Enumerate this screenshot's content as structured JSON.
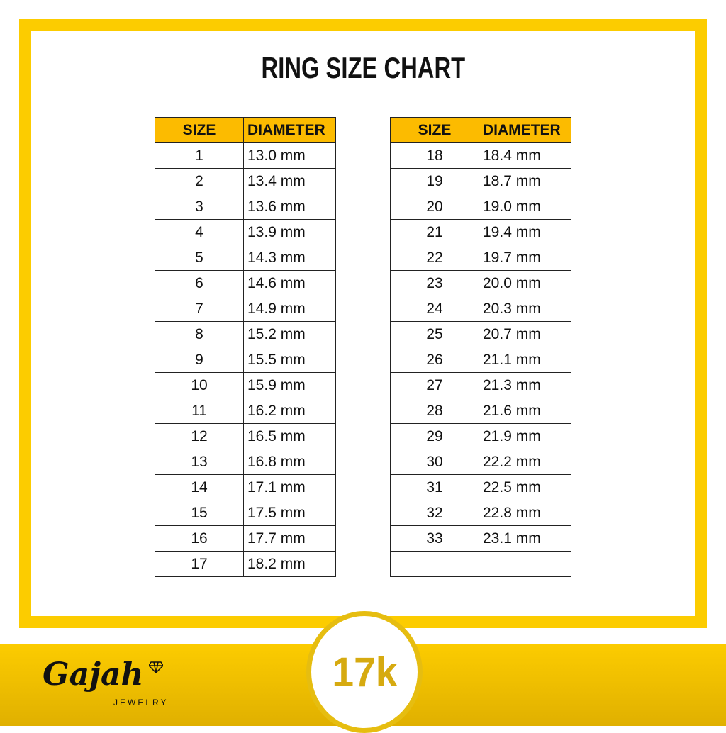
{
  "title": "RING SIZE CHART",
  "headers": {
    "size": "SIZE",
    "diameter": "DIAMETER"
  },
  "left_table": [
    {
      "size": "1",
      "diameter": "13.0 mm"
    },
    {
      "size": "2",
      "diameter": "13.4 mm"
    },
    {
      "size": "3",
      "diameter": "13.6 mm"
    },
    {
      "size": "4",
      "diameter": "13.9 mm"
    },
    {
      "size": "5",
      "diameter": "14.3 mm"
    },
    {
      "size": "6",
      "diameter": "14.6 mm"
    },
    {
      "size": "7",
      "diameter": "14.9 mm"
    },
    {
      "size": "8",
      "diameter": "15.2 mm"
    },
    {
      "size": "9",
      "diameter": "15.5 mm"
    },
    {
      "size": "10",
      "diameter": "15.9 mm"
    },
    {
      "size": "11",
      "diameter": "16.2 mm"
    },
    {
      "size": "12",
      "diameter": "16.5 mm"
    },
    {
      "size": "13",
      "diameter": "16.8 mm"
    },
    {
      "size": "14",
      "diameter": "17.1 mm"
    },
    {
      "size": "15",
      "diameter": "17.5 mm"
    },
    {
      "size": "16",
      "diameter": "17.7 mm"
    },
    {
      "size": "17",
      "diameter": "18.2 mm"
    }
  ],
  "right_table": [
    {
      "size": "18",
      "diameter": "18.4 mm"
    },
    {
      "size": "19",
      "diameter": "18.7 mm"
    },
    {
      "size": "20",
      "diameter": "19.0 mm"
    },
    {
      "size": "21",
      "diameter": "19.4 mm"
    },
    {
      "size": "22",
      "diameter": "19.7 mm"
    },
    {
      "size": "23",
      "diameter": "20.0 mm"
    },
    {
      "size": "24",
      "diameter": "20.3 mm"
    },
    {
      "size": "25",
      "diameter": "20.7 mm"
    },
    {
      "size": "26",
      "diameter": "21.1 mm"
    },
    {
      "size": "27",
      "diameter": "21.3 mm"
    },
    {
      "size": "28",
      "diameter": "21.6 mm"
    },
    {
      "size": "29",
      "diameter": "21.9 mm"
    },
    {
      "size": "30",
      "diameter": "22.2 mm"
    },
    {
      "size": "31",
      "diameter": "22.5 mm"
    },
    {
      "size": "32",
      "diameter": "22.8 mm"
    },
    {
      "size": "33",
      "diameter": "23.1 mm"
    },
    {
      "size": "",
      "diameter": ""
    }
  ],
  "badge": "17k",
  "logo": {
    "name": "Gajah",
    "sub": "JEWELRY"
  },
  "colors": {
    "frame": "#fccc00",
    "header": "#fcbb00",
    "badge_text": "#d6aa10"
  }
}
